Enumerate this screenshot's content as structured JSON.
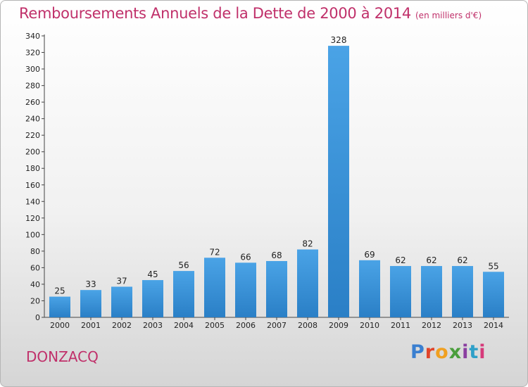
{
  "title": "Remboursements Annuels de la Dette de 2000 à 2014",
  "subtitle": "(en milliers d'€)",
  "commune": "DONZACQ",
  "logo": {
    "letters": [
      "P",
      "r",
      "o",
      "x",
      "i",
      "t",
      "i"
    ]
  },
  "colors": {
    "bar": "#4aa3e6",
    "bar_dark": "#2a7fc6",
    "title": "#c0306a"
  },
  "chart_data": {
    "type": "bar",
    "title": "Remboursements Annuels de la Dette de 2000 à 2014",
    "subtitle": "(en milliers d'€)",
    "categories": [
      "2000",
      "2001",
      "2002",
      "2003",
      "2004",
      "2005",
      "2006",
      "2007",
      "2008",
      "2009",
      "2010",
      "2011",
      "2012",
      "2013",
      "2014"
    ],
    "values": [
      25,
      33,
      37,
      45,
      56,
      72,
      66,
      68,
      82,
      328,
      69,
      62,
      62,
      62,
      55
    ],
    "ylim": [
      0,
      340
    ],
    "yticks": [
      0,
      20,
      40,
      60,
      80,
      100,
      120,
      140,
      160,
      180,
      200,
      220,
      240,
      260,
      280,
      300,
      320,
      340
    ],
    "grid": false,
    "legend": "none"
  }
}
